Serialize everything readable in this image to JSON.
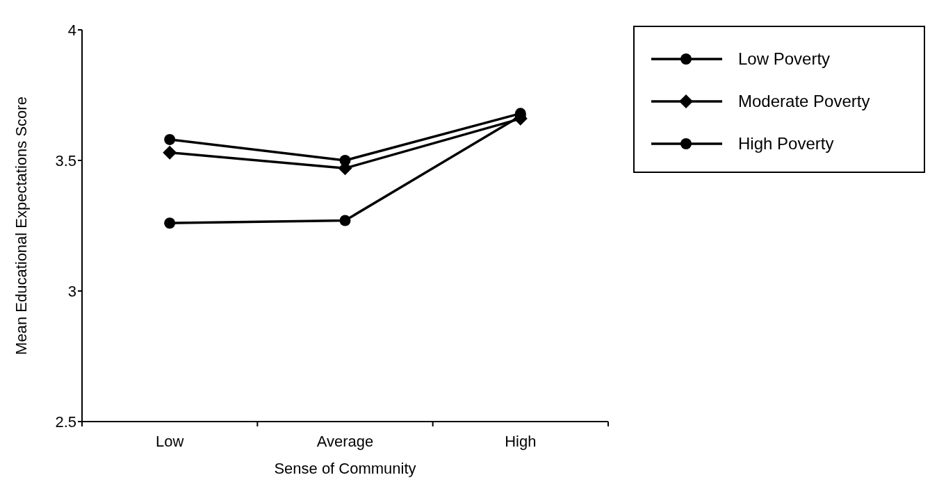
{
  "chart_data": {
    "type": "line",
    "xlabel": "Sense of Community",
    "ylabel": "Mean Educational Expectations Score",
    "categories": [
      "Low",
      "Average",
      "High"
    ],
    "ylim": [
      2.5,
      4
    ],
    "yticks": [
      2.5,
      3,
      3.5,
      4
    ],
    "legend": "top right",
    "grid": false,
    "series": [
      {
        "name": "Low Poverty",
        "color": "#000000",
        "marker": "circle",
        "values": [
          3.58,
          3.5,
          3.68
        ]
      },
      {
        "name": "Moderate Poverty",
        "color": "#000000",
        "marker": "diamond",
        "values": [
          3.53,
          3.47,
          3.66
        ]
      },
      {
        "name": "High Poverty",
        "color": "#000000",
        "marker": "circle",
        "values": [
          3.26,
          3.27,
          3.67
        ]
      }
    ]
  }
}
